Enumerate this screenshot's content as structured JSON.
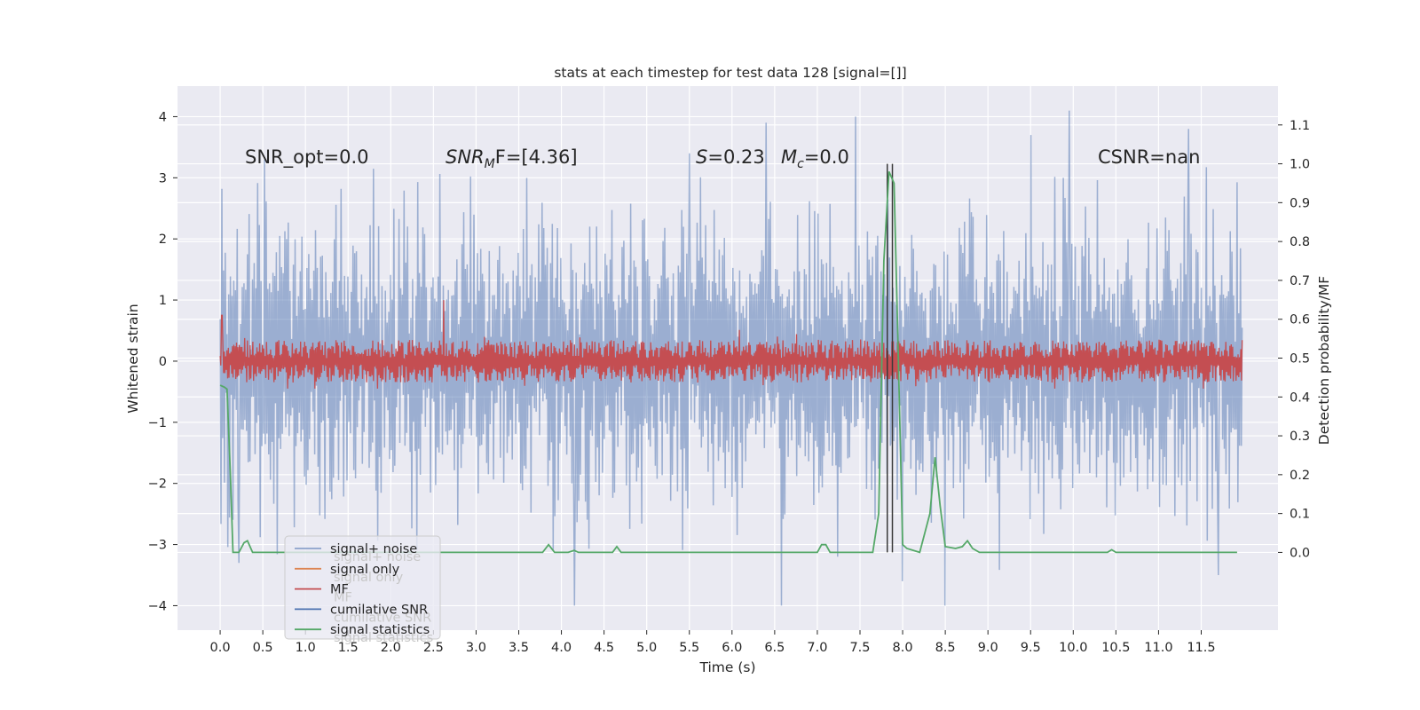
{
  "chart_data": {
    "type": "line",
    "title": "stats at each timestep for test data 128 [signal=[]]",
    "xlabel": "Time (s)",
    "ylabel": "Whitened strain",
    "y2label": "Detection probability/MF",
    "xlim": [
      -0.5,
      12.4
    ],
    "ylim": [
      -4.4,
      4.5
    ],
    "y2lim": [
      -0.2,
      1.2
    ],
    "grid": true,
    "x_ticks": [
      "0.0",
      "0.5",
      "1.0",
      "1.5",
      "2.0",
      "2.5",
      "3.0",
      "3.5",
      "4.0",
      "4.5",
      "5.0",
      "5.5",
      "6.0",
      "6.5",
      "7.0",
      "7.5",
      "8.0",
      "8.5",
      "9.0",
      "9.5",
      "10.0",
      "10.5",
      "11.0",
      "11.5"
    ],
    "y_ticks": [
      "4",
      "3",
      "2",
      "1",
      "0",
      "−1",
      "−2",
      "−3",
      "−4"
    ],
    "y2_ticks": [
      "1.1",
      "1.0",
      "0.9",
      "0.8",
      "0.7",
      "0.6",
      "0.5",
      "0.4",
      "0.3",
      "0.2",
      "0.1",
      "0.0"
    ],
    "annotations": {
      "snr_opt": "SNR_opt=0.0",
      "snr_mf_main": "SNR",
      "snr_mf_sub": "M",
      "snr_mf_rest": "F=[4.36]",
      "s_main": "S",
      "s_rest": "=0.23",
      "mc_main": "M",
      "mc_sub": "c",
      "mc_rest": "=0.0",
      "csnr": "CSNR=nan"
    },
    "vertical_markers_x": [
      7.82,
      7.88
    ],
    "legend": {
      "placement": "lower-left",
      "entries": [
        "signal+ noise",
        "signal only",
        "MF",
        "cumilative SNR",
        "signal statistics"
      ],
      "ghost_entries": [
        "signal+ noise",
        "signal only",
        "MF",
        "cumilative SNR",
        "signal statistics"
      ]
    },
    "series": [
      {
        "name": "signal+ noise",
        "axis": "left",
        "color": "#4c72b0",
        "alpha": 0.5,
        "x_start": 0.0,
        "x_end": 11.98,
        "amplitude_envelope": 1.3,
        "min": -4.1,
        "max": 4.1,
        "extreme_values": [
          {
            "x": 0.22,
            "y": -3.3
          },
          {
            "x": 0.52,
            "y": 3.3
          },
          {
            "x": 3.9,
            "y": -3.1
          },
          {
            "x": 4.15,
            "y": -4.0
          },
          {
            "x": 5.5,
            "y": 3.4
          },
          {
            "x": 6.4,
            "y": 3.9
          },
          {
            "x": 6.58,
            "y": -4.0
          },
          {
            "x": 7.45,
            "y": 4.0
          },
          {
            "x": 8.0,
            "y": -3.6
          },
          {
            "x": 8.5,
            "y": -4.0
          },
          {
            "x": 9.5,
            "y": 3.7
          },
          {
            "x": 9.95,
            "y": 4.1
          },
          {
            "x": 11.35,
            "y": 3.8
          },
          {
            "x": 11.7,
            "y": -3.5
          }
        ]
      },
      {
        "name": "signal only",
        "axis": "left",
        "color": "#dd8452",
        "values_constant": 0.0
      },
      {
        "name": "MF",
        "axis": "left",
        "color": "#c44e52",
        "x_start": 0.0,
        "x_end": 11.98,
        "amplitude_envelope": 0.3,
        "max": 1.0,
        "min": -0.45,
        "extreme_values": [
          {
            "x": 0.02,
            "y": 0.75
          },
          {
            "x": 2.62,
            "y": 1.0
          }
        ]
      },
      {
        "name": "cumilative SNR",
        "axis": "left",
        "color": "#4c72b0",
        "values_constant": null
      },
      {
        "name": "signal statistics",
        "axis": "right",
        "color": "#55a868",
        "points": [
          [
            0.0,
            0.43
          ],
          [
            0.05,
            0.425
          ],
          [
            0.08,
            0.42
          ],
          [
            0.12,
            0.2
          ],
          [
            0.15,
            0.0
          ],
          [
            0.22,
            0.0
          ],
          [
            0.28,
            0.025
          ],
          [
            0.32,
            0.03
          ],
          [
            0.38,
            0.0
          ],
          [
            3.78,
            0.0
          ],
          [
            3.85,
            0.02
          ],
          [
            3.92,
            0.0
          ],
          [
            4.08,
            0.0
          ],
          [
            4.15,
            0.005
          ],
          [
            4.2,
            0.0
          ],
          [
            4.6,
            0.0
          ],
          [
            4.65,
            0.015
          ],
          [
            4.7,
            0.0
          ],
          [
            7.0,
            0.0
          ],
          [
            7.05,
            0.02
          ],
          [
            7.1,
            0.02
          ],
          [
            7.15,
            0.0
          ],
          [
            7.65,
            0.0
          ],
          [
            7.72,
            0.1
          ],
          [
            7.78,
            0.75
          ],
          [
            7.84,
            0.98
          ],
          [
            7.9,
            0.95
          ],
          [
            7.95,
            0.5
          ],
          [
            8.0,
            0.02
          ],
          [
            8.05,
            0.01
          ],
          [
            8.2,
            0.0
          ],
          [
            8.32,
            0.1
          ],
          [
            8.38,
            0.245
          ],
          [
            8.44,
            0.12
          ],
          [
            8.5,
            0.015
          ],
          [
            8.62,
            0.01
          ],
          [
            8.7,
            0.015
          ],
          [
            8.76,
            0.03
          ],
          [
            8.82,
            0.01
          ],
          [
            8.9,
            0.0
          ],
          [
            10.4,
            0.0
          ],
          [
            10.45,
            0.007
          ],
          [
            10.5,
            0.0
          ],
          [
            11.92,
            0.0
          ]
        ]
      }
    ]
  }
}
